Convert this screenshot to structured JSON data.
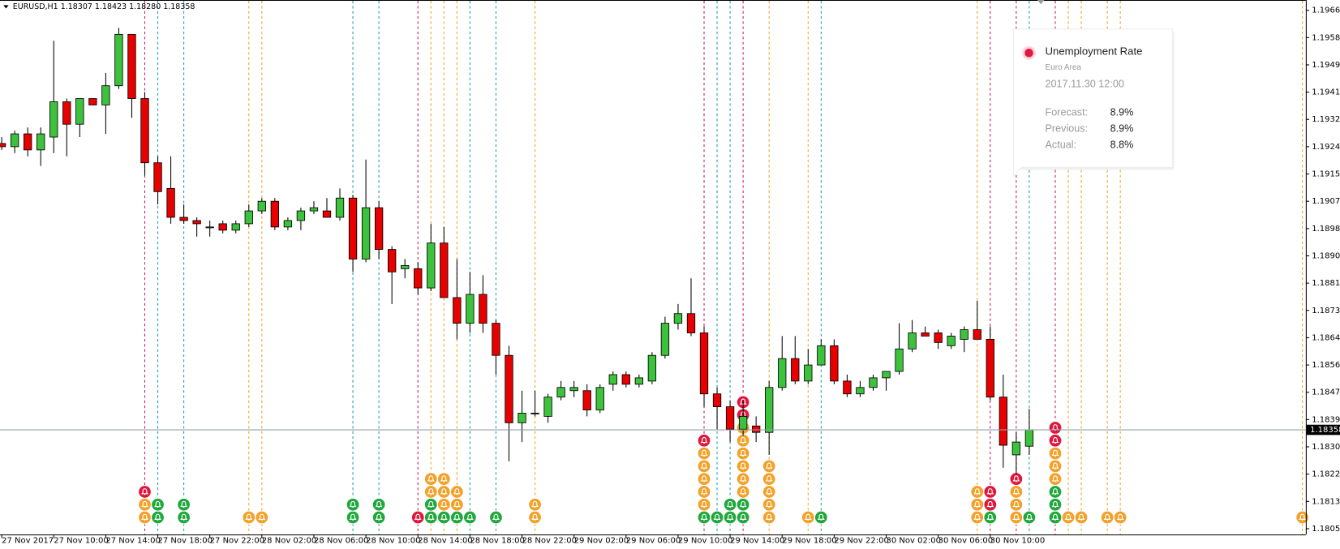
{
  "chart_data": {
    "type": "candlestick",
    "title": "EURUSD,H1  1.18307 1.18423 1.18280 1.18358",
    "up_color": "#3cc23c",
    "down_color": "#e60000",
    "categories": [
      "27 Nov 2017",
      null,
      null,
      null,
      "27 Nov 10:00",
      null,
      null,
      null,
      "27 Nov 14:00",
      null,
      null,
      null,
      "27 Nov 18:00",
      null,
      null,
      null,
      "27 Nov 22:00",
      null,
      null,
      null,
      "28 Nov 02:00",
      null,
      null,
      null,
      "28 Nov 06:00",
      null,
      null,
      null,
      "28 Nov 10:00",
      null,
      null,
      null,
      "28 Nov 14:00",
      null,
      null,
      null,
      "28 Nov 18:00",
      null,
      null,
      null,
      "28 Nov 22:00",
      null,
      null,
      null,
      "29 Nov 02:00",
      null,
      null,
      null,
      "29 Nov 06:00",
      null,
      null,
      null,
      "29 Nov 10:00",
      null,
      null,
      null,
      "29 Nov 14:00",
      null,
      null,
      null,
      "29 Nov 18:00",
      null,
      null,
      null,
      "29 Nov 22:00",
      null,
      null,
      null,
      "30 Nov 02:00",
      null,
      null,
      null,
      "30 Nov 06:00",
      null,
      null,
      null,
      "30 Nov 10:00",
      null,
      null,
      null
    ],
    "open": [
      1.1925,
      1.1924,
      1.1928,
      1.1923,
      1.1927,
      1.1938,
      1.1931,
      1.1939,
      1.1937,
      1.1943,
      1.1959,
      1.1939,
      1.1919,
      1.1911,
      1.1902,
      1.1901,
      1.1899,
      1.19,
      1.1898,
      1.19,
      1.1904,
      1.1907,
      1.1899,
      1.1901,
      1.1904,
      1.1904,
      1.1902,
      1.1908,
      1.1889,
      1.1905,
      1.1892,
      1.1886,
      1.1886,
      1.188,
      1.1894,
      1.1877,
      1.1869,
      1.1878,
      1.1869,
      1.1859,
      1.1838,
      1.1841,
      1.184,
      1.1846,
      1.1848,
      1.1848,
      1.1842,
      1.185,
      1.1853,
      1.185,
      1.1851,
      1.1859,
      1.1869,
      1.1872,
      1.1866,
      1.1847,
      1.1843,
      1.1836,
      1.1837,
      1.1835,
      1.1849,
      1.1858,
      1.1851,
      1.1856,
      1.1862,
      1.1851,
      1.1847,
      1.1849,
      1.1852,
      1.1854,
      1.1861,
      1.1866,
      1.1866,
      1.1862,
      1.1864,
      1.1867,
      1.1864,
      1.1846,
      1.1828,
      1.18307
    ],
    "high": [
      1.1927,
      1.1929,
      1.193,
      1.193,
      1.1957,
      1.1939,
      1.1939,
      1.1939,
      1.1947,
      1.1961,
      1.1959,
      1.1941,
      1.1921,
      1.1921,
      1.1906,
      1.1902,
      1.1901,
      1.1901,
      1.1901,
      1.1906,
      1.1908,
      1.1908,
      1.1902,
      1.1905,
      1.1907,
      1.1908,
      1.1911,
      1.1909,
      1.192,
      1.1907,
      1.1893,
      1.1889,
      1.1888,
      1.19,
      1.1899,
      1.1889,
      1.1885,
      1.1884,
      1.187,
      1.1862,
      1.1848,
      1.1848,
      1.1847,
      1.1851,
      1.1851,
      1.185,
      1.185,
      1.1854,
      1.1854,
      1.1853,
      1.186,
      1.1871,
      1.1875,
      1.1883,
      1.1868,
      1.1849,
      1.1845,
      1.1845,
      1.184,
      1.1851,
      1.1865,
      1.1865,
      1.1861,
      1.1864,
      1.1864,
      1.1853,
      1.1851,
      1.1853,
      1.1854,
      1.1869,
      1.187,
      1.1868,
      1.1867,
      1.1866,
      1.1868,
      1.1876,
      1.1868,
      1.1853,
      1.1835,
      1.18423
    ],
    "low": [
      1.1923,
      1.1922,
      1.1921,
      1.1918,
      1.1922,
      1.1921,
      1.1927,
      1.1937,
      1.1928,
      1.1942,
      1.1933,
      1.1915,
      1.1906,
      1.19,
      1.19,
      1.1896,
      1.1896,
      1.1897,
      1.1897,
      1.1899,
      1.1903,
      1.1898,
      1.1898,
      1.1898,
      1.1903,
      1.1902,
      1.1901,
      1.1885,
      1.1888,
      1.1889,
      1.1875,
      1.1883,
      1.1878,
      1.1879,
      1.1877,
      1.1864,
      1.1866,
      1.1866,
      1.1853,
      1.1826,
      1.1832,
      1.184,
      1.1838,
      1.1845,
      1.1846,
      1.184,
      1.1841,
      1.1848,
      1.1849,
      1.1849,
      1.185,
      1.1858,
      1.1867,
      1.1865,
      1.1843,
      1.1836,
      1.1832,
      1.1834,
      1.1832,
      1.1828,
      1.1848,
      1.185,
      1.185,
      1.1856,
      1.185,
      1.1846,
      1.1846,
      1.1848,
      1.1848,
      1.1853,
      1.186,
      1.1865,
      1.1861,
      1.1861,
      1.186,
      1.1864,
      1.1845,
      1.1824,
      1.1822,
      1.1828
    ],
    "close": [
      1.1924,
      1.1928,
      1.1923,
      1.1928,
      1.1938,
      1.1931,
      1.1939,
      1.1937,
      1.1943,
      1.1959,
      1.1939,
      1.1919,
      1.191,
      1.1902,
      1.1901,
      1.19,
      1.1899,
      1.1898,
      1.19,
      1.1904,
      1.1907,
      1.1899,
      1.1901,
      1.1904,
      1.1905,
      1.1902,
      1.1908,
      1.1889,
      1.1905,
      1.1892,
      1.1885,
      1.1887,
      1.188,
      1.1894,
      1.1877,
      1.1869,
      1.1878,
      1.1869,
      1.1859,
      1.1838,
      1.1841,
      1.1841,
      1.1846,
      1.1849,
      1.1849,
      1.1842,
      1.1849,
      1.1853,
      1.185,
      1.1852,
      1.1859,
      1.1869,
      1.1872,
      1.1866,
      1.1847,
      1.1843,
      1.1836,
      1.184,
      1.1835,
      1.1849,
      1.1858,
      1.1851,
      1.1856,
      1.1862,
      1.1851,
      1.1847,
      1.1849,
      1.1852,
      1.1854,
      1.1861,
      1.1866,
      1.1865,
      1.1863,
      1.1865,
      1.1867,
      1.1864,
      1.1846,
      1.1831,
      1.1832,
      1.18358
    ],
    "ylim": [
      1.18032,
      1.19697
    ],
    "yticks": [
      1.19665,
      {
        "value": 1.1958,
        "label": "1.19580"
      },
      1.19495,
      {
        "value": 1.1941,
        "label": "1.19410"
      },
      1.19325,
      {
        "value": 1.1924,
        "label": "1.19240"
      },
      1.19155,
      {
        "value": 1.1907,
        "label": "1.19070"
      },
      1.18985,
      {
        "value": 1.189,
        "label": "1.18900"
      },
      1.18815,
      {
        "value": 1.1873,
        "label": "1.18730"
      },
      1.18645,
      {
        "value": 1.1856,
        "label": "1.18560"
      },
      1.18475,
      {
        "value": 1.1839,
        "label": "1.18390"
      },
      1.18305,
      {
        "value": 1.1822,
        "label": "1.18220"
      },
      1.18135,
      {
        "value": 1.1805,
        "label": "1.18050"
      }
    ],
    "tooltip": {
      "title": "Unemployment Rate",
      "region": "Euro Area",
      "time": "2017.11.30 12:00",
      "rows": [
        {
          "label": "Forecast:",
          "value": "8.9%"
        },
        {
          "label": "Previous:",
          "value": "8.9%"
        },
        {
          "label": "Actual:",
          "value": "8.8%"
        }
      ]
    }
  }
}
